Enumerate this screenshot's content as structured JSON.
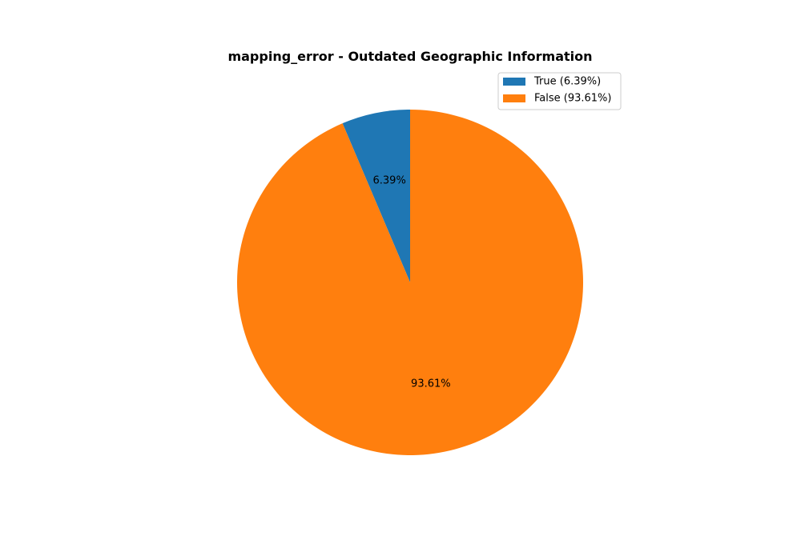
{
  "chart_data": {
    "type": "pie",
    "title": "mapping_error - Outdated Geographic Information",
    "slices": [
      {
        "name": "True",
        "value": 6.39,
        "label": "6.39%",
        "legend_label": "True (6.39%)",
        "color": "#1f77b4"
      },
      {
        "name": "False",
        "value": 93.61,
        "label": "93.61%",
        "legend_label": "False (93.61%)",
        "color": "#ff7f0e"
      }
    ],
    "start_angle_deg": 90,
    "direction": "counterclockwise",
    "legend_position": "top-right"
  }
}
